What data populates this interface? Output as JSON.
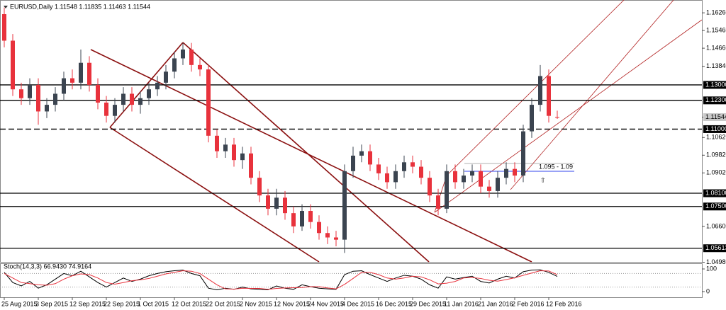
{
  "chart_data": [
    {
      "type": "candlestick",
      "title": "EURUSD,Daily 1.11548 1.11835 1.11463 1.11544",
      "categories": [
        "25 Aug 2015",
        null,
        null,
        null,
        "3 Sep 2015",
        null,
        null,
        null,
        "12 Sep 2015",
        null,
        null,
        null,
        "22 Sep 2015",
        null,
        null,
        null,
        "1 Oct 2015",
        null,
        null,
        null,
        "12 Oct 2015",
        null,
        null,
        null,
        "22 Oct 2015",
        null,
        null,
        null,
        "2 Nov 2015",
        null,
        null,
        null,
        "12 Nov 2015",
        null,
        null,
        null,
        "24 Nov 2015",
        null,
        null,
        null,
        "4 Dec 2015",
        null,
        null,
        null,
        "16 Dec 2015",
        null,
        null,
        null,
        "29 Dec 2015",
        null,
        null,
        null,
        "11 Jan 2016",
        null,
        null,
        null,
        "21 Jan 2016",
        null,
        null,
        null,
        "2 Feb 2016",
        null,
        null,
        null,
        "12 Feb 2016",
        null
      ],
      "open": [
        1.162,
        1.15,
        1.128,
        1.124,
        1.13,
        1.118,
        1.121,
        1.126,
        1.133,
        1.131,
        1.14,
        1.13,
        1.122,
        1.116,
        1.121,
        1.126,
        1.121,
        1.124,
        1.128,
        1.131,
        1.136,
        1.142,
        1.146,
        1.139,
        1.137,
        1.107,
        1.1,
        1.103,
        1.096,
        1.099,
        1.088,
        1.08,
        1.074,
        1.079,
        1.072,
        1.066,
        1.073,
        1.068,
        1.063,
        1.061,
        1.06,
        1.091,
        1.098,
        1.1,
        1.094,
        1.09,
        1.086,
        1.091,
        1.095,
        1.093,
        1.088,
        1.08,
        1.074,
        1.091,
        1.086,
        1.089,
        1.091,
        1.084,
        1.082,
        1.088,
        1.092,
        1.089,
        1.109,
        1.121,
        1.134,
        1.11548
      ],
      "high": [
        1.165,
        1.153,
        1.131,
        1.133,
        1.133,
        1.124,
        1.129,
        1.136,
        1.137,
        1.146,
        1.143,
        1.133,
        1.125,
        1.124,
        1.129,
        1.129,
        1.127,
        1.131,
        1.134,
        1.139,
        1.145,
        1.149,
        1.149,
        1.142,
        1.139,
        1.11,
        1.106,
        1.106,
        1.102,
        1.102,
        1.091,
        1.083,
        1.083,
        1.082,
        1.075,
        1.076,
        1.076,
        1.071,
        1.066,
        1.064,
        1.094,
        1.102,
        1.103,
        1.103,
        1.097,
        1.093,
        1.094,
        1.098,
        1.098,
        1.096,
        1.091,
        1.083,
        1.094,
        1.094,
        1.092,
        1.094,
        1.094,
        1.087,
        1.091,
        1.095,
        1.095,
        1.112,
        1.124,
        1.139,
        1.137,
        1.11835
      ],
      "low": [
        1.147,
        1.125,
        1.121,
        1.121,
        1.112,
        1.115,
        1.118,
        1.123,
        1.128,
        1.128,
        1.127,
        1.119,
        1.113,
        1.113,
        1.118,
        1.118,
        1.117,
        1.121,
        1.125,
        1.128,
        1.133,
        1.139,
        1.136,
        1.134,
        1.104,
        1.097,
        1.097,
        1.093,
        1.092,
        1.085,
        1.077,
        1.071,
        1.071,
        1.069,
        1.063,
        1.064,
        1.065,
        1.06,
        1.058,
        1.057,
        1.054,
        1.088,
        1.095,
        1.091,
        1.087,
        1.083,
        1.083,
        1.088,
        1.09,
        1.085,
        1.077,
        1.071,
        1.072,
        1.083,
        1.083,
        1.086,
        1.081,
        1.079,
        1.079,
        1.085,
        1.086,
        1.086,
        1.106,
        1.118,
        1.113,
        1.11463
      ],
      "close": [
        1.15,
        1.128,
        1.124,
        1.13,
        1.118,
        1.121,
        1.126,
        1.133,
        1.131,
        1.14,
        1.13,
        1.122,
        1.116,
        1.121,
        1.126,
        1.121,
        1.124,
        1.128,
        1.131,
        1.136,
        1.142,
        1.146,
        1.139,
        1.137,
        1.107,
        1.1,
        1.103,
        1.096,
        1.099,
        1.088,
        1.08,
        1.074,
        1.079,
        1.072,
        1.066,
        1.073,
        1.068,
        1.063,
        1.061,
        1.06,
        1.091,
        1.098,
        1.1,
        1.094,
        1.09,
        1.086,
        1.091,
        1.095,
        1.093,
        1.088,
        1.08,
        1.074,
        1.091,
        1.086,
        1.089,
        1.091,
        1.084,
        1.082,
        1.088,
        1.092,
        1.089,
        1.109,
        1.121,
        1.134,
        1.116,
        1.11544
      ],
      "up_color": "#3b4450",
      "down_color": "#e8323c",
      "ylim": [
        1.0498,
        1.1668
      ],
      "yticks": [
        {
          "value": 1.1626,
          "label": "1.16260"
        },
        {
          "value": 1.1546,
          "label": "1.15460"
        },
        {
          "value": 1.1466,
          "label": "1.14660"
        },
        {
          "value": 1.1384,
          "label": "1.13840"
        },
        {
          "value": 1.1062,
          "label": "1.10620"
        },
        {
          "value": 1.0982,
          "label": "1.09820"
        },
        {
          "value": 1.0902,
          "label": "1.09020"
        },
        {
          "value": 1.066,
          "label": "1.06600"
        },
        {
          "value": 1.0498,
          "label": "1.04980"
        }
      ],
      "levels": [
        {
          "value": 1.13,
          "label": "1.13000",
          "dashed": false
        },
        {
          "value": 1.123,
          "label": "1.12300",
          "dashed": false
        },
        {
          "value": 1.11,
          "label": "1.11000",
          "dashed": true
        },
        {
          "value": 1.081,
          "label": "1.08100",
          "dashed": false
        },
        {
          "value": 1.075,
          "label": "1.07500",
          "dashed": false
        },
        {
          "value": 1.05613,
          "label": "1.05613",
          "dashed": false
        }
      ],
      "last_price": {
        "value": 1.11544,
        "label": "1.11544"
      },
      "annotation": "1.095 - 1.09"
    },
    {
      "type": "line",
      "title": "Stoch(14,3,3) 66.9430 74.9164",
      "series": [
        {
          "color": "#000000",
          "values": [
            85,
            40,
            25,
            45,
            15,
            30,
            55,
            80,
            70,
            90,
            65,
            40,
            20,
            40,
            60,
            45,
            55,
            70,
            80,
            88,
            92,
            95,
            80,
            70,
            15,
            8,
            15,
            10,
            20,
            12,
            10,
            8,
            25,
            15,
            10,
            30,
            22,
            15,
            12,
            10,
            75,
            90,
            92,
            75,
            60,
            45,
            60,
            72,
            68,
            55,
            30,
            15,
            65,
            55,
            62,
            68,
            45,
            38,
            55,
            68,
            60,
            88,
            95,
            96,
            85,
            66.943
          ]
        },
        {
          "color": "#e8323c",
          "values": [
            80,
            60,
            40,
            35,
            30,
            28,
            35,
            55,
            70,
            78,
            75,
            60,
            40,
            33,
            40,
            48,
            52,
            58,
            68,
            78,
            85,
            92,
            90,
            80,
            55,
            30,
            12,
            11,
            15,
            14,
            14,
            10,
            14,
            16,
            17,
            18,
            22,
            22,
            16,
            12,
            32,
            58,
            85,
            85,
            75,
            60,
            55,
            60,
            68,
            65,
            52,
            34,
            37,
            45,
            60,
            62,
            58,
            50,
            46,
            53,
            61,
            72,
            82,
            92,
            91,
            74.9164
          ]
        }
      ],
      "ylim": [
        0,
        100
      ],
      "yticks": [
        0,
        100
      ],
      "levels": [
        20,
        80
      ]
    }
  ]
}
